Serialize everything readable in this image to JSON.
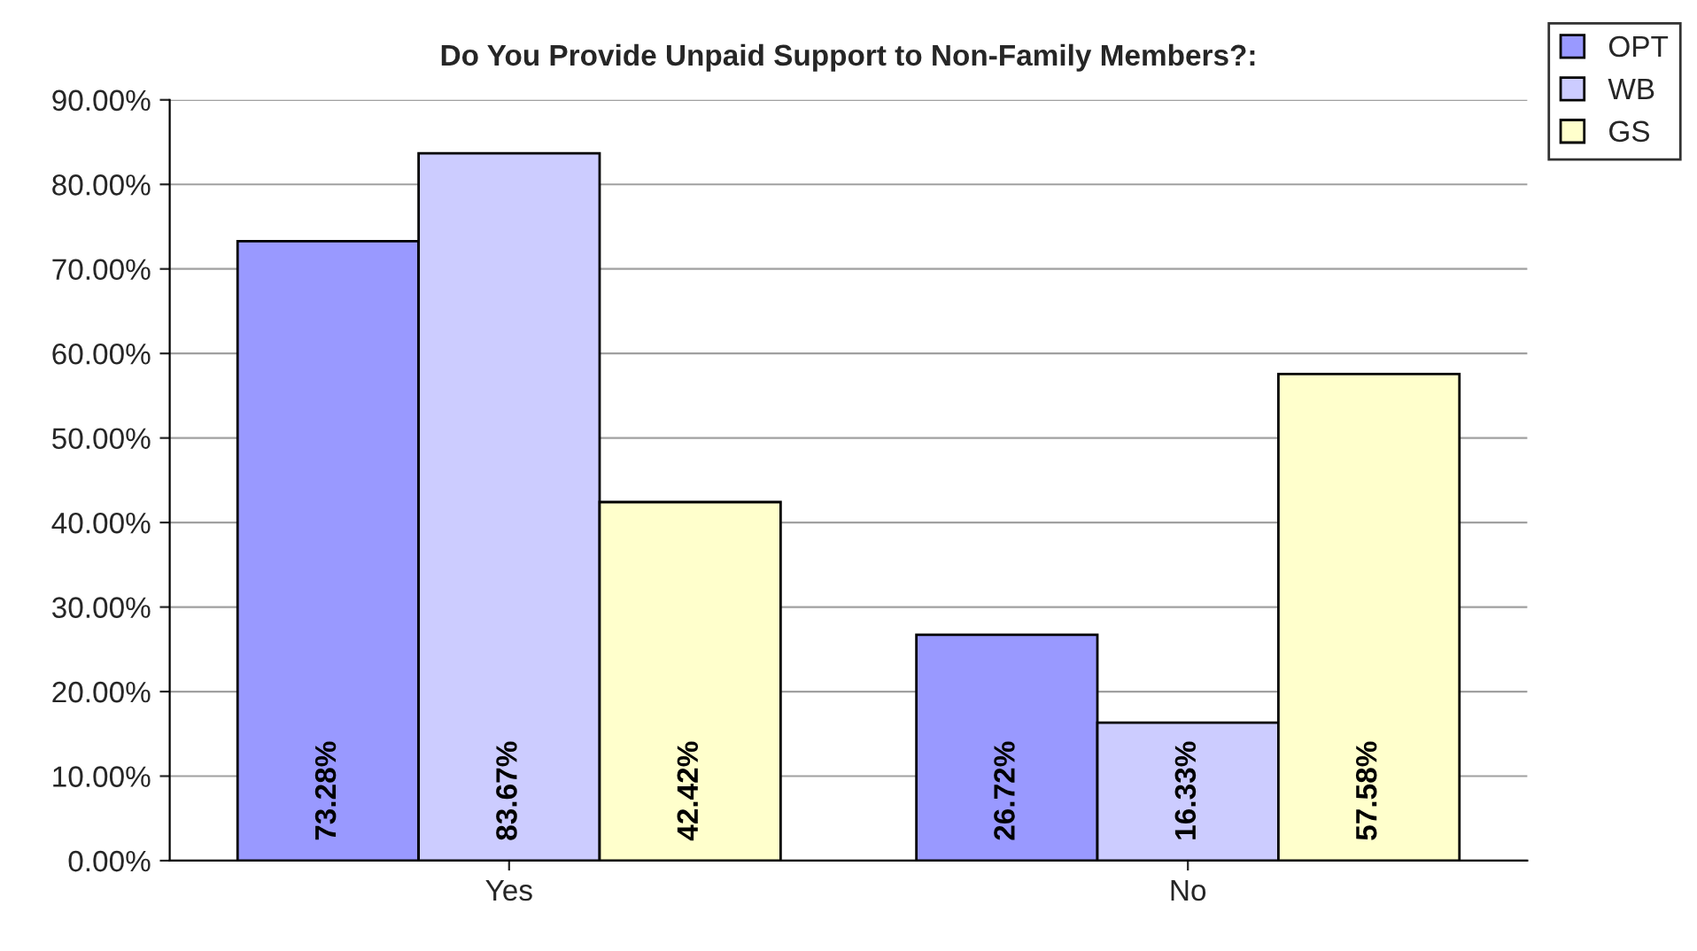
{
  "chart_data": {
    "type": "bar",
    "title": "Do You Provide Unpaid Support to Non-Family Members?:",
    "categories": [
      "Yes",
      "No"
    ],
    "series": [
      {
        "name": "OPT",
        "color": "#9999ff",
        "values": [
          73.28,
          26.72
        ],
        "value_labels": [
          "73.28%",
          "26.72%"
        ]
      },
      {
        "name": "WB",
        "color": "#ccccff",
        "values": [
          83.67,
          16.33
        ],
        "value_labels": [
          "83.67%",
          "16.33%"
        ]
      },
      {
        "name": "GS",
        "color": "#ffffcc",
        "values": [
          42.42,
          57.58
        ],
        "value_labels": [
          "42.42%",
          "57.58%"
        ]
      }
    ],
    "ylim": [
      0,
      90
    ],
    "yticks": [
      {
        "value": 0,
        "label": "0.00%"
      },
      {
        "value": 10,
        "label": "10.00%"
      },
      {
        "value": 20,
        "label": "20.00%"
      },
      {
        "value": 30,
        "label": "30.00%"
      },
      {
        "value": 40,
        "label": "40.00%"
      },
      {
        "value": 50,
        "label": "50.00%"
      },
      {
        "value": 60,
        "label": "60.00%"
      },
      {
        "value": 70,
        "label": "70.00%"
      },
      {
        "value": 80,
        "label": "80.00%"
      },
      {
        "value": 90,
        "label": "90.00%"
      }
    ],
    "grid": "y",
    "legend": "right"
  }
}
